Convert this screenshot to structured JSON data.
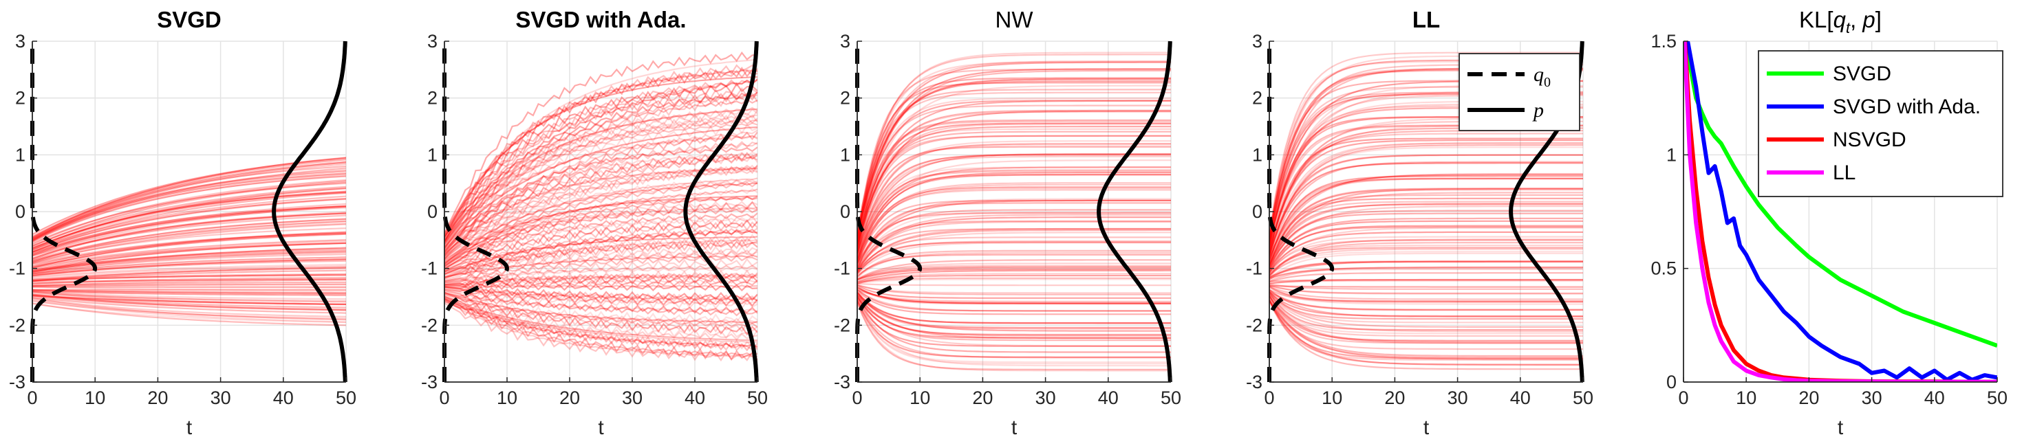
{
  "figure": {
    "panels": [
      {
        "title": "SVGD",
        "bold": true,
        "xlabel": "t"
      },
      {
        "title": "SVGD with Ada.",
        "bold": true,
        "xlabel": "t"
      },
      {
        "title": "NW",
        "bold": false,
        "xlabel": "t"
      },
      {
        "title": "LL",
        "bold": true,
        "xlabel": "t"
      }
    ],
    "kl_panel": {
      "title_prefix": "KL",
      "title_args": "[q",
      "title_sub": "t",
      "title_rest": ", p]",
      "xlabel": "t"
    },
    "legend_densities": [
      {
        "label": "q",
        "sub": "0",
        "style": "dashed"
      },
      {
        "label": "p",
        "sub": "",
        "style": "solid"
      }
    ]
  },
  "chart_data": [
    {
      "type": "line",
      "title": "SVGD",
      "xlabel": "t",
      "xlim": [
        0,
        50
      ],
      "ylim": [
        -3,
        3
      ],
      "xticks": [
        0,
        10,
        20,
        30,
        40,
        50
      ],
      "yticks": [
        -3,
        -2,
        -1,
        0,
        1,
        2,
        3
      ],
      "grid": true,
      "particles": {
        "count": 120,
        "color": "#ff0000",
        "t_start": 0,
        "t_end": 50,
        "initial_range": [
          -1.6,
          -0.4
        ],
        "final_range": [
          -2.0,
          1.0
        ]
      },
      "densities": [
        {
          "name": "q0",
          "dist": "normal",
          "mean": -1,
          "std": 0.3,
          "style": "dashed"
        },
        {
          "name": "p",
          "dist": "normal",
          "mean": 0,
          "std": 1,
          "style": "solid"
        }
      ]
    },
    {
      "type": "line",
      "title": "SVGD with Ada.",
      "xlabel": "t",
      "xlim": [
        0,
        50
      ],
      "ylim": [
        -3,
        3
      ],
      "xticks": [
        0,
        10,
        20,
        30,
        40,
        50
      ],
      "yticks": [
        -3,
        -2,
        -1,
        0,
        1,
        2,
        3
      ],
      "grid": true,
      "particles": {
        "count": 120,
        "color": "#ff0000",
        "t_start": 0,
        "t_end": 50,
        "initial_range": [
          -1.6,
          -0.4
        ],
        "final_range": [
          -2.7,
          2.8
        ]
      },
      "densities": [
        {
          "name": "q0",
          "dist": "normal",
          "mean": -1,
          "std": 0.3,
          "style": "dashed"
        },
        {
          "name": "p",
          "dist": "normal",
          "mean": 0,
          "std": 1,
          "style": "solid"
        }
      ]
    },
    {
      "type": "line",
      "title": "NW",
      "xlabel": "t",
      "xlim": [
        0,
        50
      ],
      "ylim": [
        -3,
        3
      ],
      "xticks": [
        0,
        10,
        20,
        30,
        40,
        50
      ],
      "yticks": [
        -3,
        -2,
        -1,
        0,
        1,
        2,
        3
      ],
      "grid": true,
      "particles": {
        "count": 120,
        "color": "#ff0000",
        "t_start": 0,
        "t_end": 50,
        "initial_range": [
          -1.6,
          -0.4
        ],
        "final_range": [
          -2.8,
          2.8
        ]
      },
      "densities": [
        {
          "name": "q0",
          "dist": "normal",
          "mean": -1,
          "std": 0.3,
          "style": "dashed"
        },
        {
          "name": "p",
          "dist": "normal",
          "mean": 0,
          "std": 1,
          "style": "solid"
        }
      ]
    },
    {
      "type": "line",
      "title": "LL",
      "xlabel": "t",
      "xlim": [
        0,
        50
      ],
      "ylim": [
        -3,
        3
      ],
      "xticks": [
        0,
        10,
        20,
        30,
        40,
        50
      ],
      "yticks": [
        -3,
        -2,
        -1,
        0,
        1,
        2,
        3
      ],
      "grid": true,
      "legend": {
        "placement": "top-right",
        "entries": [
          "q0",
          "p"
        ]
      },
      "particles": {
        "count": 120,
        "color": "#ff0000",
        "t_start": 0,
        "t_end": 50,
        "initial_range": [
          -1.6,
          -0.4
        ],
        "final_range": [
          -2.8,
          2.8
        ]
      },
      "densities": [
        {
          "name": "q0",
          "dist": "normal",
          "mean": -1,
          "std": 0.3,
          "style": "dashed"
        },
        {
          "name": "p",
          "dist": "normal",
          "mean": 0,
          "std": 1,
          "style": "solid"
        }
      ]
    },
    {
      "type": "line",
      "title": "KL[q_t, p]",
      "xlabel": "t",
      "xlim": [
        0,
        50
      ],
      "ylim": [
        0,
        1.5
      ],
      "xticks": [
        0,
        10,
        20,
        30,
        40,
        50
      ],
      "yticks": [
        0,
        0.5,
        1,
        1.5
      ],
      "ytick_labels": [
        "0",
        "0.5",
        "1",
        "1.5"
      ],
      "grid": true,
      "legend": {
        "placement": "top-right"
      },
      "series": [
        {
          "name": "SVGD",
          "color": "#00ff00",
          "x": [
            0,
            1,
            2,
            3,
            4,
            5,
            6,
            8,
            10,
            12,
            15,
            18,
            20,
            25,
            30,
            35,
            40,
            45,
            50
          ],
          "y": [
            1.6,
            1.4,
            1.25,
            1.18,
            1.12,
            1.08,
            1.05,
            0.95,
            0.86,
            0.78,
            0.68,
            0.6,
            0.55,
            0.45,
            0.38,
            0.31,
            0.26,
            0.21,
            0.16
          ]
        },
        {
          "name": "SVGD with Ada.",
          "color": "#0000ff",
          "x": [
            0,
            1,
            2,
            3,
            4,
            5,
            6,
            7,
            8,
            9,
            10,
            12,
            14,
            16,
            18,
            20,
            22,
            25,
            28,
            30,
            32,
            34,
            36,
            38,
            40,
            42,
            44,
            46,
            48,
            50
          ],
          "y": [
            1.6,
            1.45,
            1.3,
            1.1,
            0.92,
            0.95,
            0.84,
            0.7,
            0.72,
            0.6,
            0.56,
            0.45,
            0.38,
            0.31,
            0.26,
            0.2,
            0.16,
            0.11,
            0.08,
            0.04,
            0.05,
            0.02,
            0.06,
            0.02,
            0.05,
            0.01,
            0.04,
            0.01,
            0.03,
            0.02
          ]
        },
        {
          "name": "NSVGD",
          "color": "#ff0000",
          "x": [
            0,
            1,
            2,
            3,
            4,
            5,
            6,
            8,
            10,
            12,
            14,
            16,
            18,
            20,
            25,
            30,
            35,
            40,
            45,
            50
          ],
          "y": [
            1.6,
            1.15,
            0.85,
            0.62,
            0.46,
            0.34,
            0.25,
            0.14,
            0.08,
            0.05,
            0.03,
            0.02,
            0.015,
            0.01,
            0.005,
            0.003,
            0.002,
            0.002,
            0.001,
            0.001
          ]
        },
        {
          "name": "LL",
          "color": "#ff00ff",
          "x": [
            0,
            1,
            2,
            3,
            4,
            5,
            6,
            8,
            10,
            12,
            14,
            16,
            18,
            20,
            25,
            30,
            35,
            40,
            45,
            50
          ],
          "y": [
            1.6,
            1.0,
            0.7,
            0.5,
            0.35,
            0.25,
            0.18,
            0.09,
            0.05,
            0.03,
            0.02,
            0.012,
            0.008,
            0.005,
            0.003,
            0.002,
            0.001,
            0.001,
            0.001,
            0.001
          ]
        }
      ]
    }
  ]
}
